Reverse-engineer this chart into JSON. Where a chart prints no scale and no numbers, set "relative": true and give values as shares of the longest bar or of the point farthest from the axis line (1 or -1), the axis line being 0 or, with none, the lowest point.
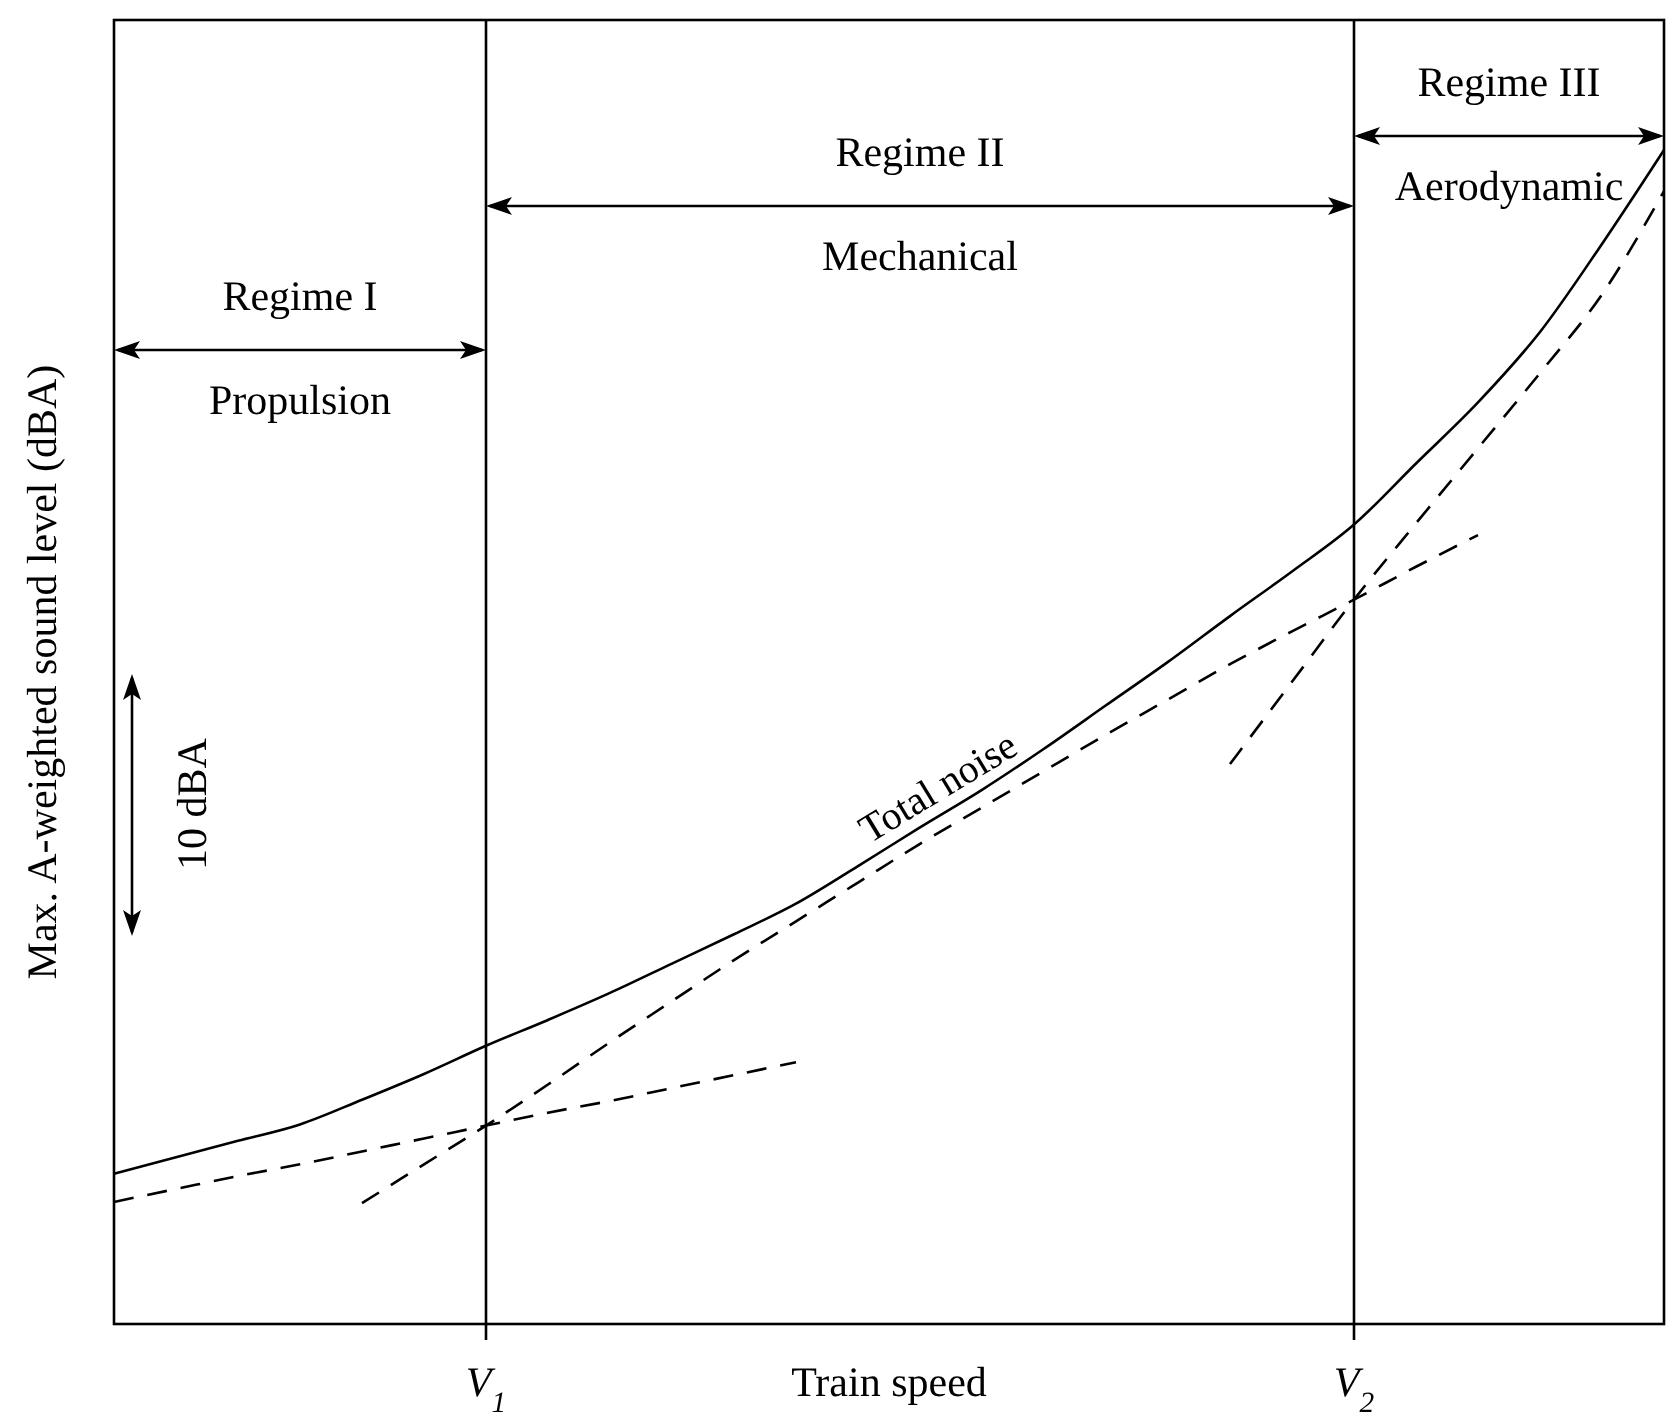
{
  "chart_data": {
    "type": "line",
    "relative": true,
    "xlabel": "Train speed",
    "ylabel": "Max. A-weighted sound level (dBA)",
    "categories": [
      null,
      null,
      null,
      null,
      null,
      null,
      "V$_{1}$",
      null,
      null,
      null,
      null,
      null,
      null,
      null,
      null,
      null,
      null,
      null,
      null,
      null,
      "V$_{2}$",
      null,
      null,
      null,
      null,
      null
    ],
    "ref_lines": [
      {
        "axis": "x",
        "value": "V$_{1}$",
        "color": "#000000"
      },
      {
        "axis": "x",
        "value": "V$_{2}$",
        "color": "#000000"
      }
    ],
    "annotations": [
      "Regime I",
      "Propulsion",
      "Regime II",
      "Mechanical",
      "Regime III",
      "Aerodynamic",
      "10 dBA"
    ],
    "legend": false,
    "series": [
      {
        "name": "Total noise",
        "color": "#000000",
        "line_style": "solid",
        "values": [
          0.128,
          0.142,
          0.156,
          0.17,
          0.191,
          0.213,
          0.237,
          0.259,
          0.282,
          0.307,
          0.332,
          0.358,
          0.39,
          0.423,
          0.455,
          0.49,
          0.527,
          0.564,
          0.603,
          0.641,
          0.681,
          0.733,
          0.785,
          0.845,
          0.92,
          1
        ]
      },
      {
        "color": "#000000",
        "line_style": "dashed",
        "values": [
          0.104,
          0.115,
          0.126,
          0.136,
          0.147,
          0.158,
          0.169,
          0.18,
          0.19,
          0.201,
          0.212,
          0.223,
          null,
          null,
          null,
          null,
          null,
          null,
          null,
          null,
          null,
          null,
          null,
          null,
          null,
          null
        ]
      },
      {
        "color": "#000000",
        "line_style": "dashed",
        "values": [
          null,
          null,
          null,
          null,
          0.103,
          0.136,
          0.169,
          0.204,
          0.24,
          0.275,
          0.31,
          0.343,
          0.376,
          0.409,
          0.44,
          0.471,
          0.502,
          0.532,
          0.562,
          0.59,
          0.617,
          0.645,
          0.672,
          null,
          null,
          null
        ]
      },
      {
        "color": "#000000",
        "line_style": "dashed",
        "values": [
          null,
          null,
          null,
          null,
          null,
          null,
          null,
          null,
          null,
          null,
          null,
          null,
          null,
          null,
          null,
          null,
          null,
          null,
          0.477,
          0.547,
          0.617,
          0.682,
          0.746,
          0.81,
          0.877,
          0.965
        ]
      }
    ]
  }
}
